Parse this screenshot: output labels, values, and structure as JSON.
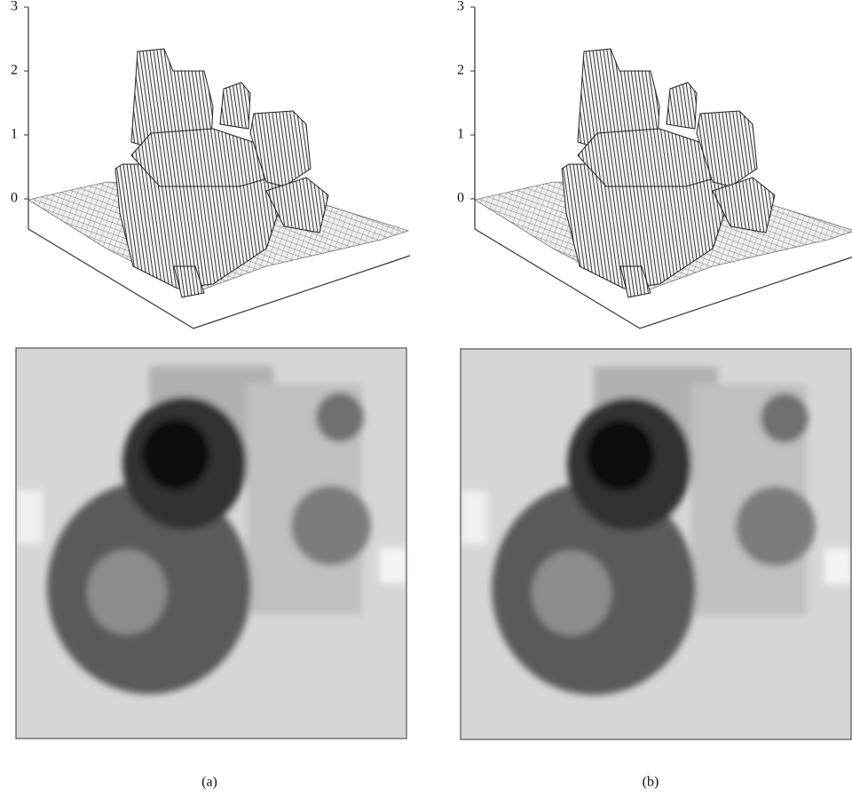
{
  "panels": [
    {
      "caption": "(a)",
      "z_ticks": [
        0,
        1,
        2,
        3
      ]
    },
    {
      "caption": "(b)",
      "z_ticks": [
        0,
        1,
        2,
        3
      ]
    }
  ]
}
